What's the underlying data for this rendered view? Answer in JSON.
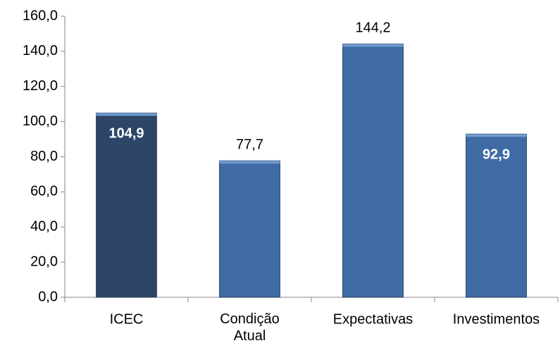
{
  "chart_data": {
    "type": "bar",
    "categories": [
      "ICEC",
      "Condição Atual",
      "Expectativas",
      "Investimentos"
    ],
    "values": [
      104.9,
      77.7,
      144.2,
      92.9
    ],
    "value_labels": [
      "104,9",
      "77,7",
      "144,2",
      "92,9"
    ],
    "value_label_positions": [
      "inside",
      "outside",
      "outside",
      "inside"
    ],
    "colors": [
      "#2d4668",
      "#3f6ca4",
      "#3f6ca4",
      "#3f6ca4"
    ],
    "ylim": [
      0,
      160
    ],
    "yticks": [
      {
        "value": 0,
        "label": "0,0"
      },
      {
        "value": 20,
        "label": "20,0"
      },
      {
        "value": 40,
        "label": "40,0"
      },
      {
        "value": 60,
        "label": "60,0"
      },
      {
        "value": 80,
        "label": "80,0"
      },
      {
        "value": 100,
        "label": "100,0"
      },
      {
        "value": 120,
        "label": "120,0"
      },
      {
        "value": 140,
        "label": "140,0"
      },
      {
        "value": 160,
        "label": "160,0"
      }
    ],
    "grid": false
  }
}
